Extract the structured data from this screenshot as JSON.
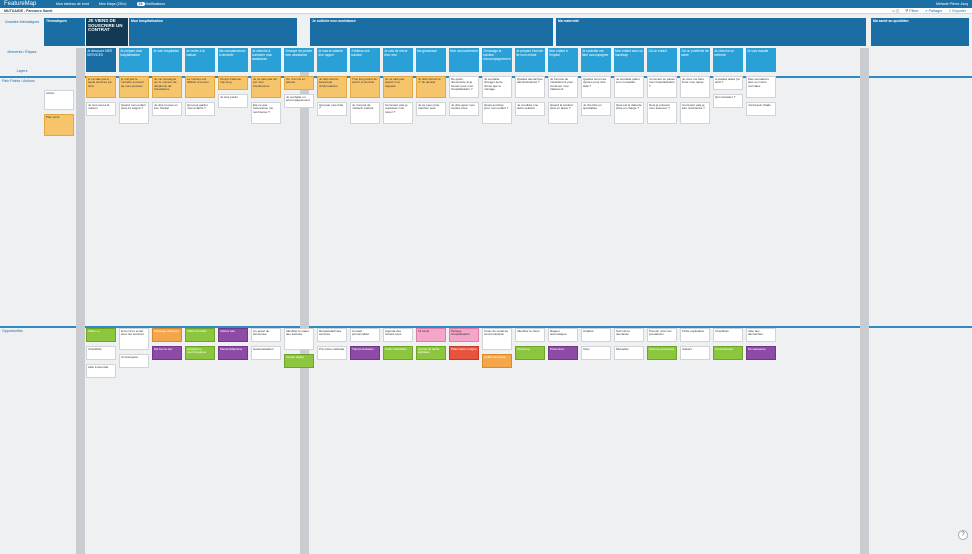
{
  "app": {
    "logo": "FeatureMap",
    "nav": [
      "Mon tableau de bord",
      "Mes Maps (29/∞)",
      "Notifications"
    ],
    "notif_count": "39",
    "user": "Mélanie Pierre-Jacq"
  },
  "subbar": {
    "breadcrumb": "MUTUAIDE - Parcours Santé",
    "actions": [
      "Filtrer",
      "Partager",
      "Exporter"
    ]
  },
  "row_labels": {
    "themes": "Grandes thématiques",
    "moments": "Moments / Étapes",
    "layers": "Layers",
    "lane1": "Pain Points / Actions",
    "lane2": "Opportunités"
  },
  "themes": [
    {
      "label": "Thématiques"
    },
    {
      "label": "JE VIENS DE SOUSCRIRE UN CONTRAT"
    },
    {
      "label": "Mon hospitalisation"
    },
    {
      "label": "Je sollicite mon assistance"
    },
    {
      "label": "Ma maternité"
    },
    {
      "label": "Ma santé au quotidien"
    }
  ],
  "moments": [
    "Je découvre MES SERVICES",
    "Je prépare mon hospitalisation",
    "Je suis hospitalisé",
    "Je rentre à la maison",
    "Ma convalescence à domicile",
    "Je cherche à contacter mon assistance",
    "J'essaye de joindre mon assistance",
    "Je suis en attente d'un rappel",
    "J'obtiens une solution",
    "Je suis de retour chez moi",
    "Ma grossesse",
    "Mon accouchement",
    "J'envisage la solution d'accompagnement",
    "Je prépare l'arrivée de mon enfant",
    "Mon enfant à l'hôpital",
    "Je souhaite me faire accompagner",
    "Mon enfant avec un handicap",
    "J'ai un enfant",
    "J'ai un problème de santé",
    "Je cherche un médecin",
    "Je suis malade"
  ],
  "lane1": {
    "layer_label": "Action",
    "pain_label": "Pain point",
    "cards": [
      {
        "text": "je ne sais pas à quels services j'ai droit",
        "color": "orange"
      },
      {
        "text": "je n'ai pas le moindre souvenir de mes services",
        "color": "orange"
      },
      {
        "text": "Je me renseigne sur le numéro de téléphone de l'assistance",
        "color": "orange"
      },
      {
        "text": "Le numéro est difficile à trouver",
        "color": "orange"
      },
      {
        "text": "Temps d'attente trop long",
        "color": "orange"
      },
      {
        "text": "Je ne sais pas qui est mon interlocuteur",
        "color": "orange"
      },
      {
        "text": "On m'a mis en attente",
        "color": "orange"
      },
      {
        "text": "Je dois donner beaucoup d'informations",
        "color": "orange"
      },
      {
        "text": "Trop long avant de savoir si j'ai droit",
        "color": "orange"
      },
      {
        "text": "Je ne sais pas quand il va rappeler",
        "color": "orange"
      },
      {
        "text": "Je dois donner le n° de dossier",
        "color": "orange"
      },
      {
        "text": "De quels documents ai-je besoin pour mon hospitalisation ?",
        "color": "white"
      },
      {
        "text": "Je souhaite changer autre chose que le ménage",
        "color": "white"
      },
      {
        "text": "Quelles démarches administratives ?",
        "color": "white"
      },
      {
        "text": "Je l'ai plus de médicament pour continuer mon traitement",
        "color": "white"
      },
      {
        "text": "Quelles sont mes options pour être aidé ?",
        "color": "white"
      },
      {
        "text": "Je souhaite parler à un conseiller",
        "color": "white"
      },
      {
        "text": "Comment se passe mon hospitalisation ?",
        "color": "white"
      },
      {
        "text": "Je veux me faire livrer mes repas",
        "color": "white"
      },
      {
        "text": "A quelles aides j'ai droit ?",
        "color": "white"
      },
      {
        "text": "Mes sensations plus ou moins normales",
        "color": "white"
      },
      {
        "text": "Je suis seul à la maison",
        "color": "white"
      },
      {
        "text": "Quand mon enfant sera-t-il soigné ?",
        "color": "white"
      },
      {
        "text": "Je dois trouver un bon hôpital",
        "color": "white"
      },
      {
        "text": "Qui peut garder mes enfants ?",
        "color": "white"
      },
      {
        "text": "Je suis perdu",
        "color": "white"
      },
      {
        "text": "Est-ce que l'assurance me rembourse ?",
        "color": "white"
      },
      {
        "text": "Je souhaite un accompagnement",
        "color": "white"
      },
      {
        "text": "Qui paie mes frais ?",
        "color": "white"
      },
      {
        "text": "Je n'ai pas de médecin traitant",
        "color": "white"
      },
      {
        "text": "Comment vais-je organiser mon retour ?",
        "color": "white"
      },
      {
        "text": "Je ne peux plus marcher seul",
        "color": "white"
      },
      {
        "text": "Je dois gérer mes rendez-vous",
        "color": "white"
      },
      {
        "text": "Quels services pour mon enfant ?",
        "color": "white"
      },
      {
        "text": "Je voudrais une autre solution",
        "color": "white"
      },
      {
        "text": "Quand la solution sera en place ?",
        "color": "white"
      },
      {
        "text": "Je cherche un spécialiste",
        "color": "white"
      },
      {
        "text": "Quel est le délai de prise en charge ?",
        "color": "white"
      },
      {
        "text": "Dois-je prévenir mon assureur ?",
        "color": "white"
      },
      {
        "text": "Comment vais-je être remboursé ?",
        "color": "white"
      },
      {
        "text": "Qui contacter ?",
        "color": "white"
      },
      {
        "text": "J'ai besoin d'aide",
        "color": "white"
      }
    ]
  },
  "lane2": {
    "layer_label": "Vidéo ++",
    "cards": [
      {
        "text": "Vidéo ++",
        "color": "green"
      },
      {
        "text": "Envoi d'un email avec les services",
        "color": "white"
      },
      {
        "text": "Message d'accueil",
        "color": "lorange"
      },
      {
        "text": "Vidéo Produits",
        "color": "green"
      },
      {
        "text": "Vidéos tuto",
        "color": "purple"
      },
      {
        "text": "Un appel de bienvenue",
        "color": "white"
      },
      {
        "text": "Identifier le statut des assurés",
        "color": "white"
      },
      {
        "text": "Récapitulatif des services",
        "color": "white"
      },
      {
        "text": "Conseil personnalisé",
        "color": "white"
      },
      {
        "text": "Agenda des rendez-vous",
        "color": "white"
      },
      {
        "text": "Fil santé",
        "color": "pink"
      },
      {
        "text": "Partage hospitalisation",
        "color": "pink"
      },
      {
        "text": "Choix du canal de communication",
        "color": "white"
      },
      {
        "text": "Identifier le client",
        "color": "white"
      },
      {
        "text": "Rappel automatique",
        "color": "white"
      },
      {
        "text": "Chatbot",
        "color": "white"
      },
      {
        "text": "Suivi de la demande",
        "color": "white"
      },
      {
        "text": "Pouvoir noter les prestations",
        "color": "white"
      },
      {
        "text": "Fiche explicative",
        "color": "white"
      },
      {
        "text": "Checklists",
        "color": "white"
      },
      {
        "text": "Aide aux démarches",
        "color": "white"
      },
      {
        "text": "Checklists",
        "color": "white"
      },
      {
        "text": "Conciergerie",
        "color": "white"
      },
      {
        "text": "Ma bonne fée",
        "color": "purple"
      },
      {
        "text": "Assistance psychologique",
        "color": "green"
      },
      {
        "text": "Parrain/Marraine",
        "color": "purple"
      },
      {
        "text": "Géolocalisation",
        "color": "white"
      },
      {
        "text": "Carnet digital",
        "color": "green"
      },
      {
        "text": "Pré-visite médicale",
        "color": "white"
      },
      {
        "text": "Téléconsultation",
        "color": "purple"
      },
      {
        "text": "Push Checklists",
        "color": "green"
      },
      {
        "text": "Carnet de santé digitalisé",
        "color": "green"
      },
      {
        "text": "Pharmacie en ligne",
        "color": "red"
      },
      {
        "text": "Coffre-fort santé",
        "color": "lorange"
      },
      {
        "text": "Check-up",
        "color": "green"
      },
      {
        "text": "Prévention",
        "color": "purple"
      },
      {
        "text": "Visio",
        "color": "white"
      },
      {
        "text": "Mutuelles",
        "color": "white"
      },
      {
        "text": "Suivi de grossesse",
        "color": "green"
      },
      {
        "text": "Ateliers",
        "color": "white"
      },
      {
        "text": "Communauté",
        "color": "green"
      },
      {
        "text": "Kit naissance",
        "color": "purple"
      },
      {
        "text": "Aide à domicile",
        "color": "white"
      }
    ]
  }
}
